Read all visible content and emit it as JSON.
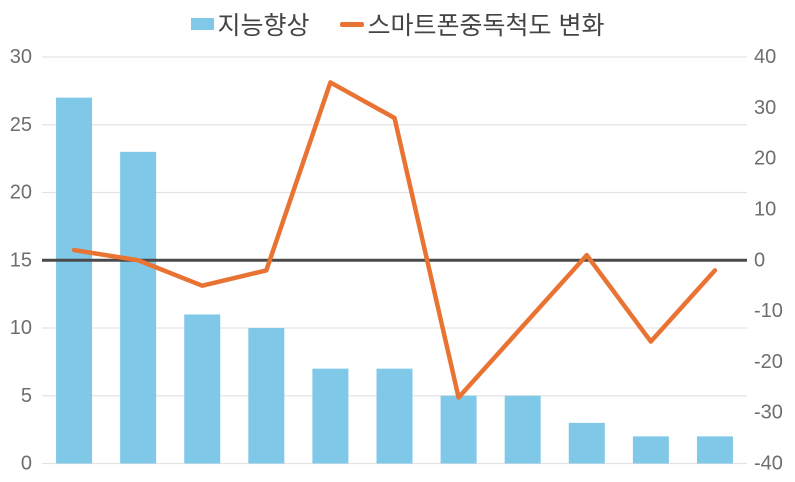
{
  "chart_data": {
    "type": "combo-bar-line",
    "n_categories": 11,
    "series": [
      {
        "name": "지능향상",
        "type": "bar",
        "axis": "left",
        "color": "#7FC8E8",
        "values": [
          27,
          23,
          11,
          10,
          7,
          7,
          5,
          5,
          3,
          2,
          2
        ]
      },
      {
        "name": "스마트폰중독척도 변화",
        "type": "line",
        "axis": "right",
        "color": "#E97332",
        "values": [
          2,
          0,
          -5,
          -2,
          35,
          28,
          -27,
          -13,
          1,
          -16,
          -2
        ]
      }
    ],
    "left_axis": {
      "min": 0,
      "max": 30,
      "ticks": [
        30,
        25,
        20,
        15,
        10,
        5,
        0
      ]
    },
    "right_axis": {
      "min": -40,
      "max": 40,
      "ticks": [
        40,
        30,
        20,
        10,
        0,
        -10,
        -20,
        -30,
        -40
      ]
    },
    "baseline": {
      "left_value": 15,
      "right_value": 0,
      "color": "#4A4A4A"
    },
    "grid": true,
    "legend_position": "top",
    "title": "",
    "xlabel": "",
    "ylabel": ""
  },
  "legend": {
    "items": [
      {
        "label": "지능향상",
        "marker": "square",
        "color": "#7FC8E8"
      },
      {
        "label": "스마트폰중독척도 변화",
        "marker": "line",
        "color": "#E97332"
      }
    ]
  },
  "colors": {
    "background": "#FFFFFF",
    "gridline": "#E3E3E3",
    "axis_text": "#6E6E6E",
    "legend_text": "#444444",
    "bar": "#7FC8E8",
    "line": "#E97332",
    "baseline": "#4A4A4A"
  }
}
